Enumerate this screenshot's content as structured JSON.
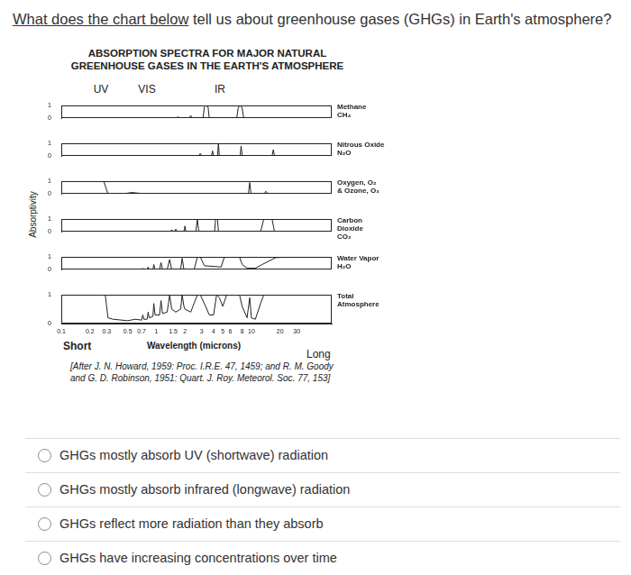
{
  "question": {
    "underlined": "What does the chart below",
    "text": " tell us about greenhouse gases (GHGs) in Earth's atmosphere?"
  },
  "chart_data": {
    "type": "line",
    "title": "ABSORPTION SPECTRA FOR MAJOR NATURAL\nGREENHOUSE GASES IN THE EARTH'S ATMOSPHERE",
    "bands": [
      "UV",
      "VIS",
      "IR"
    ],
    "xlabel": "Wavelength (microns)",
    "ylabel": "Absorptivity",
    "annotations": [
      "Short",
      "Long"
    ],
    "source": "[After J. N. Howard, 1959: Proc. I.R.E. 47, 1459; and R. M. Goody\nand G. D. Robinson, 1951: Quart. J. Roy. Meteorol. Soc. 77, 153]",
    "log": "x",
    "grid": false,
    "xlim": [
      0.1,
      70
    ],
    "xticks": [
      0.1,
      0.2,
      0.3,
      0.5,
      0.7,
      1,
      1.5,
      2,
      3,
      4,
      5,
      6,
      8,
      10,
      20,
      30
    ],
    "ylim": [
      0,
      1
    ],
    "yticks": [
      0,
      1
    ],
    "series": [
      {
        "name": "Methane\nCH₄",
        "color": "#222222",
        "x": [
          0.1,
          1.6,
          1.7,
          1.75,
          2.2,
          2.3,
          2.4,
          3.1,
          3.2,
          3.3,
          3.5,
          3.6,
          7.0,
          7.3,
          7.7,
          8.0,
          8.3,
          70
        ],
        "values": [
          0,
          0,
          0.1,
          0,
          0,
          0.2,
          0,
          0,
          0.9,
          1,
          0.9,
          0,
          0,
          0.9,
          1,
          0.8,
          0,
          0
        ]
      },
      {
        "name": "Nitrous Oxide\nN₂O",
        "color": "#222222",
        "x": [
          0.1,
          2.8,
          2.9,
          3.0,
          3.8,
          3.9,
          4.0,
          4.4,
          4.5,
          4.6,
          7.6,
          7.8,
          8.0,
          16.5,
          17,
          17.5,
          70
        ],
        "values": [
          0,
          0,
          0.2,
          0,
          0,
          0.4,
          0,
          0,
          1,
          0,
          0,
          0.8,
          0,
          0,
          0.5,
          0,
          0
        ]
      },
      {
        "name": "Oxygen, O₂\n& Ozone, O₃",
        "color": "#222222",
        "x": [
          0.1,
          0.28,
          0.3,
          0.31,
          0.45,
          0.55,
          0.65,
          0.75,
          9.3,
          9.6,
          9.9,
          13.5,
          14.2,
          15,
          70
        ],
        "values": [
          1,
          1,
          0.3,
          0,
          0,
          0.1,
          0.05,
          0,
          0,
          0.9,
          0,
          0,
          0.2,
          0,
          0
        ]
      },
      {
        "name": "Carbon\nDioxide\nCO₂",
        "color": "#222222",
        "x": [
          0.1,
          1.4,
          1.45,
          1.5,
          1.55,
          1.6,
          1.65,
          1.95,
          2.0,
          2.05,
          2.6,
          2.7,
          2.8,
          4.1,
          4.2,
          4.4,
          4.5,
          12.5,
          13.5,
          16.5,
          17.5,
          70
        ],
        "values": [
          0,
          0,
          0.15,
          0,
          0,
          0.2,
          0,
          0,
          0.45,
          0,
          0,
          0.95,
          0,
          0,
          1,
          1,
          0,
          0,
          1,
          1,
          0,
          0
        ]
      },
      {
        "name": "Water Vapor\nH₂O",
        "color": "#222222",
        "x": [
          0.1,
          0.7,
          0.72,
          0.74,
          0.8,
          0.82,
          0.84,
          0.92,
          0.94,
          0.97,
          1.08,
          1.12,
          1.16,
          1.3,
          1.38,
          1.45,
          1.8,
          1.87,
          1.95,
          2.5,
          2.7,
          2.9,
          3.2,
          4.8,
          5.2,
          6.3,
          7.5,
          8.0,
          9,
          11,
          13,
          18,
          25,
          70
        ],
        "values": [
          0,
          0,
          0.1,
          0,
          0,
          0.2,
          0,
          0,
          0.4,
          0,
          0,
          0.55,
          0,
          0,
          0.8,
          0,
          0,
          0.9,
          0,
          0,
          1,
          1,
          0.3,
          0.2,
          1,
          1,
          1,
          0.4,
          0.1,
          0.1,
          0.4,
          0.95,
          1,
          1
        ]
      },
      {
        "name": "Total\nAtmosphere",
        "color": "#222222",
        "x": [
          0.1,
          0.29,
          0.3,
          0.31,
          0.35,
          0.5,
          0.6,
          0.7,
          0.72,
          0.74,
          0.8,
          0.82,
          0.84,
          0.92,
          0.94,
          0.97,
          1.08,
          1.12,
          1.16,
          1.3,
          1.38,
          1.45,
          1.6,
          1.8,
          1.87,
          1.95,
          2.0,
          2.3,
          2.7,
          2.9,
          3.3,
          3.6,
          4.0,
          4.3,
          4.6,
          5.0,
          5.5,
          7.5,
          8.0,
          9.0,
          9.6,
          10.0,
          11,
          12.5,
          13.5,
          70
        ],
        "values": [
          1,
          1,
          0.6,
          0.2,
          0.15,
          0.1,
          0.15,
          0.12,
          0.3,
          0.15,
          0.15,
          0.4,
          0.2,
          0.25,
          0.7,
          0.3,
          0.3,
          0.8,
          0.35,
          0.4,
          1,
          0.5,
          0.4,
          0.5,
          1,
          0.6,
          0.5,
          0.4,
          1,
          1,
          0.6,
          0.3,
          0.3,
          1,
          0.9,
          0.6,
          1,
          1,
          0.6,
          0.2,
          0.9,
          0.2,
          0.15,
          0.7,
          1,
          1
        ]
      }
    ]
  },
  "options": [
    "GHGs mostly absorb UV (shortwave) radiation",
    "GHGs mostly absorb infrared (longwave) radiation",
    "GHGs reflect more radiation than they absorb",
    "GHGs have increasing concentrations over time"
  ]
}
